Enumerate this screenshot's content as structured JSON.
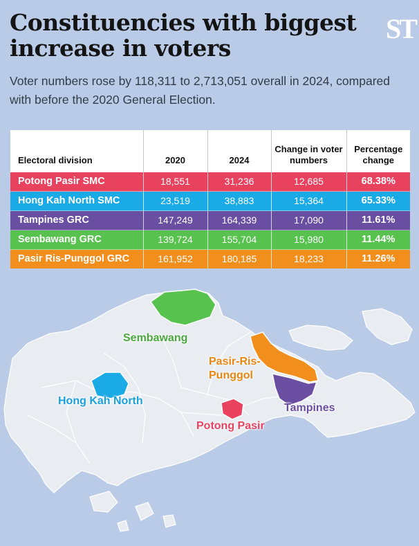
{
  "title": "Constituencies with biggest increase in voters",
  "logo": "ST",
  "subtitle": "Voter numbers rose by 118,311 to 2,713,051 overall in 2024, compared with before the 2020 General Election.",
  "table": {
    "headers": [
      "Electoral division",
      "2020",
      "2024",
      "Change in voter numbers",
      "Percentage change"
    ],
    "rows": [
      {
        "division": "Potong Pasir SMC",
        "y2020": "18,551",
        "y2024": "31,236",
        "change": "12,685",
        "pct": "68.38%",
        "color": "#e8425f"
      },
      {
        "division": "Hong Kah North SMC",
        "y2020": "23,519",
        "y2024": "38,883",
        "change": "15,364",
        "pct": "65.33%",
        "color": "#1aabe6"
      },
      {
        "division": "Tampines GRC",
        "y2020": "147,249",
        "y2024": "164,339",
        "change": "17,090",
        "pct": "11.61%",
        "color": "#6a4ea2"
      },
      {
        "division": "Sembawang GRC",
        "y2020": "139,724",
        "y2024": "155,704",
        "change": "15,980",
        "pct": "11.44%",
        "color": "#58c24f"
      },
      {
        "division": "Pasir Ris-Punggol GRC",
        "y2020": "161,952",
        "y2024": "180,185",
        "change": "18,233",
        "pct": "11.26%",
        "color": "#f28e1c"
      }
    ]
  },
  "map_labels": {
    "sembawang": "Sembawang",
    "pasir_ris_line1": "Pasir-Ris-",
    "pasir_ris_line2": "Punggol",
    "hong_kah_north": "Hong Kah North",
    "tampines": "Tampines",
    "potong_pasir": "Potong Pasir"
  },
  "colors": {
    "background": "#b9cbe6",
    "land": "#e9edf2",
    "potong_pasir": "#e8425f",
    "hong_kah_north": "#1aabe6",
    "tampines": "#6a4ea2",
    "sembawang": "#58c24f",
    "pasir_ris_punggol": "#f28e1c"
  }
}
